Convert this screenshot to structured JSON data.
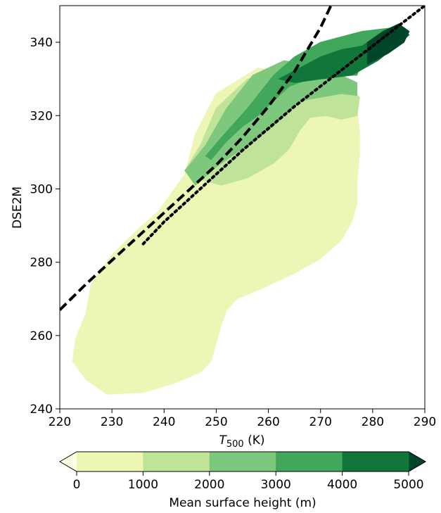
{
  "chart_data": {
    "type": "contourf",
    "xlabel_main": "T",
    "xlabel_sub": "500",
    "xlabel_unit": "(K)",
    "ylabel": "DSE2M",
    "xlim": [
      220,
      290
    ],
    "ylim": [
      240,
      350
    ],
    "x_ticks": [
      "220",
      "230",
      "240",
      "250",
      "260",
      "270",
      "280",
      "290"
    ],
    "y_ticks": [
      "240",
      "260",
      "280",
      "300",
      "320",
      "340"
    ],
    "colorbar": {
      "label": "Mean surface height (m)",
      "ticks": [
        "0",
        "1000",
        "2000",
        "3000",
        "4000",
        "5000"
      ],
      "levels": [
        0,
        1000,
        2000,
        3000,
        4000,
        5000
      ],
      "extend": "both",
      "colors": [
        "#ffffe5",
        "#edf6b4",
        "#c0e39a",
        "#7ec87d",
        "#41a75a",
        "#11763a",
        "#004529"
      ]
    },
    "regions": [
      {
        "level_min": 0,
        "level_max": 1000,
        "color": "#edf6b4",
        "polygon": [
          [
            229,
            244
          ],
          [
            236,
            244.5
          ],
          [
            242,
            247
          ],
          [
            247,
            250
          ],
          [
            249,
            253
          ],
          [
            250,
            258
          ],
          [
            251,
            263
          ],
          [
            252,
            267
          ],
          [
            254,
            270
          ],
          [
            259,
            273
          ],
          [
            265,
            277
          ],
          [
            270,
            281
          ],
          [
            274,
            286
          ],
          [
            276,
            291
          ],
          [
            277,
            296
          ],
          [
            277,
            302
          ],
          [
            277.5,
            310
          ],
          [
            277.5,
            315
          ],
          [
            277,
            322
          ],
          [
            276,
            326
          ],
          [
            268,
            330
          ],
          [
            258,
            333
          ],
          [
            250,
            326
          ],
          [
            246,
            315
          ],
          [
            244,
            304
          ],
          [
            239,
            294
          ],
          [
            235,
            289
          ],
          [
            230,
            282
          ],
          [
            226,
            274
          ],
          [
            225,
            266
          ],
          [
            223,
            259
          ],
          [
            222.5,
            253
          ],
          [
            225,
            248
          ]
        ]
      },
      {
        "level_min": 1000,
        "level_max": 2000,
        "color": "#c0e39a",
        "polygon": [
          [
            246,
            303
          ],
          [
            251,
            301
          ],
          [
            256,
            303
          ],
          [
            261,
            307
          ],
          [
            264,
            311
          ],
          [
            266,
            316
          ],
          [
            268,
            319.5
          ],
          [
            271,
            320
          ],
          [
            274,
            319
          ],
          [
            277,
            320
          ],
          [
            277.5,
            325
          ],
          [
            275,
            328
          ],
          [
            264,
            331
          ],
          [
            256,
            330
          ],
          [
            250,
            322
          ],
          [
            247,
            312
          ],
          [
            244,
            305
          ]
        ]
      },
      {
        "level_min": 2000,
        "level_max": 3000,
        "color": "#7ec87d",
        "polygon": [
          [
            246,
            301
          ],
          [
            250,
            306
          ],
          [
            254,
            310
          ],
          [
            257,
            313
          ],
          [
            260,
            316
          ],
          [
            263,
            320
          ],
          [
            266,
            324
          ],
          [
            270,
            325
          ],
          [
            274,
            326
          ],
          [
            277,
            325.5
          ],
          [
            277,
            329
          ],
          [
            271,
            333
          ],
          [
            263,
            335
          ],
          [
            257,
            331
          ],
          [
            252,
            322
          ],
          [
            248,
            312
          ],
          [
            244,
            305
          ]
        ]
      },
      {
        "level_min": 3000,
        "level_max": 4000,
        "color": "#41a75a",
        "polygon": [
          [
            249,
            308
          ],
          [
            252,
            313
          ],
          [
            255,
            317
          ],
          [
            258,
            320
          ],
          [
            261,
            324
          ],
          [
            264,
            328
          ],
          [
            268,
            330
          ],
          [
            273,
            331
          ],
          [
            277,
            331
          ],
          [
            278,
            335
          ],
          [
            282,
            341
          ],
          [
            284,
            344
          ],
          [
            278,
            343
          ],
          [
            270,
            340
          ],
          [
            265,
            336
          ],
          [
            261,
            331
          ],
          [
            256,
            322
          ],
          [
            251,
            314
          ],
          [
            248,
            309
          ]
        ]
      },
      {
        "level_min": 4000,
        "level_max": 5000,
        "color": "#11763a",
        "polygon": [
          [
            262,
            330
          ],
          [
            266,
            333
          ],
          [
            270,
            336
          ],
          [
            274,
            338
          ],
          [
            278,
            339
          ],
          [
            282,
            343
          ],
          [
            285,
            345
          ],
          [
            287,
            342
          ],
          [
            281,
            335
          ],
          [
            276,
            331
          ],
          [
            270,
            330
          ],
          [
            265,
            329
          ]
        ]
      },
      {
        "level_min": 5000,
        "level_max": null,
        "color": "#004529",
        "polygon": [
          [
            279,
            334
          ],
          [
            283,
            337
          ],
          [
            286,
            340
          ],
          [
            287,
            343
          ],
          [
            285,
            345
          ],
          [
            282,
            343
          ],
          [
            279,
            340
          ]
        ]
      }
    ],
    "lines": [
      {
        "style": "dashed",
        "color": "#000000",
        "x": [
          220,
          225,
          230,
          235,
          240,
          245,
          250,
          255,
          260,
          265,
          270,
          272
        ],
        "y": [
          267,
          274,
          280.5,
          287,
          293.5,
          300,
          306.5,
          314,
          322.5,
          332,
          344,
          350
        ]
      },
      {
        "style": "dotted",
        "color": "#000000",
        "x": [
          236,
          240,
          245,
          250,
          255,
          260,
          265,
          270,
          275,
          280,
          285,
          290
        ],
        "y": [
          285,
          291,
          297.5,
          304,
          310.5,
          316.5,
          322.5,
          328,
          333.5,
          339,
          344.5,
          350
        ]
      }
    ]
  }
}
